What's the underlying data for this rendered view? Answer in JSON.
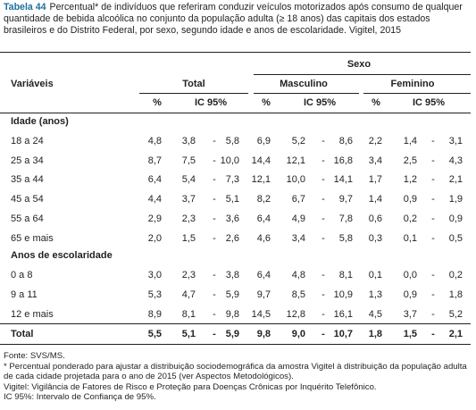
{
  "caption": {
    "label": "Tabela 44",
    "text": "Percentual* de indivíduos que referiram conduzir veículos motorizados após consumo de qualquer quantidade de bebida alcoólica no conjunto da população adulta (≥ 18 anos) das capitais dos estados brasileiros e do Distrito Federal, por sexo, segundo idade e anos de escolaridade. Vigitel, 2015"
  },
  "table": {
    "group_header": "Sexo",
    "headers": [
      "Variáveis",
      "Total",
      "Masculino",
      "Feminino"
    ],
    "subheaders": [
      "%",
      "IC 95%",
      "%",
      "IC 95%",
      "%",
      "IC 95%"
    ],
    "ci_separator": "-",
    "sections": [
      {
        "title": "Idade (anos)",
        "rows": [
          {
            "label": "18 a 24",
            "values": [
              "4,8",
              "3,8",
              "5,8",
              "6,9",
              "5,2",
              "8,6",
              "2,2",
              "1,4",
              "3,1"
            ]
          },
          {
            "label": "25 a 34",
            "values": [
              "8,7",
              "7,5",
              "10,0",
              "14,4",
              "12,1",
              "16,8",
              "3,4",
              "2,5",
              "4,3"
            ]
          },
          {
            "label": "35 a 44",
            "values": [
              "6,4",
              "5,4",
              "7,3",
              "12,1",
              "10,0",
              "14,1",
              "1,7",
              "1,2",
              "2,1"
            ]
          },
          {
            "label": "45 a 54",
            "values": [
              "4,4",
              "3,7",
              "5,1",
              "8,2",
              "6,7",
              "9,7",
              "1,4",
              "0,9",
              "1,9"
            ]
          },
          {
            "label": "55 a 64",
            "values": [
              "2,9",
              "2,3",
              "3,6",
              "6,4",
              "4,9",
              "7,8",
              "0,6",
              "0,2",
              "0,9"
            ]
          },
          {
            "label": "65 e mais",
            "values": [
              "2,0",
              "1,5",
              "2,6",
              "4,6",
              "3,4",
              "5,8",
              "0,3",
              "0,1",
              "0,5"
            ]
          }
        ]
      },
      {
        "title": "Anos de escolaridade",
        "rows": [
          {
            "label": "0 a 8",
            "values": [
              "3,0",
              "2,3",
              "3,8",
              "6,4",
              "4,8",
              "8,1",
              "0,1",
              "0,0",
              "0,2"
            ]
          },
          {
            "label": "9 a 11",
            "values": [
              "5,3",
              "4,7",
              "5,9",
              "9,7",
              "8,5",
              "10,9",
              "1,3",
              "0,9",
              "1,8"
            ]
          },
          {
            "label": "12 e mais",
            "values": [
              "8,9",
              "8,1",
              "9,8",
              "14,5",
              "12,8",
              "16,1",
              "4,5",
              "3,7",
              "5,2"
            ]
          }
        ]
      }
    ],
    "total": {
      "label": "Total",
      "values": [
        "5,5",
        "5,1",
        "5,9",
        "9,8",
        "9,0",
        "10,7",
        "1,8",
        "1,5",
        "2,1"
      ]
    }
  },
  "footnotes": [
    "Fonte: SVS/MS.",
    "* Percentual ponderado para ajustar a distribuição sociodemográfica da amostra Vigitel à distribuição da população adulta de cada cidade projetada para o ano de 2015 (ver Aspectos Metodológicos).",
    "Vigitel: Vigilância de Fatores de Risco e Proteção para Doenças Crônicas por Inquérito Telefônico.",
    "IC 95%: Intervalo de Confiança de 95%."
  ]
}
